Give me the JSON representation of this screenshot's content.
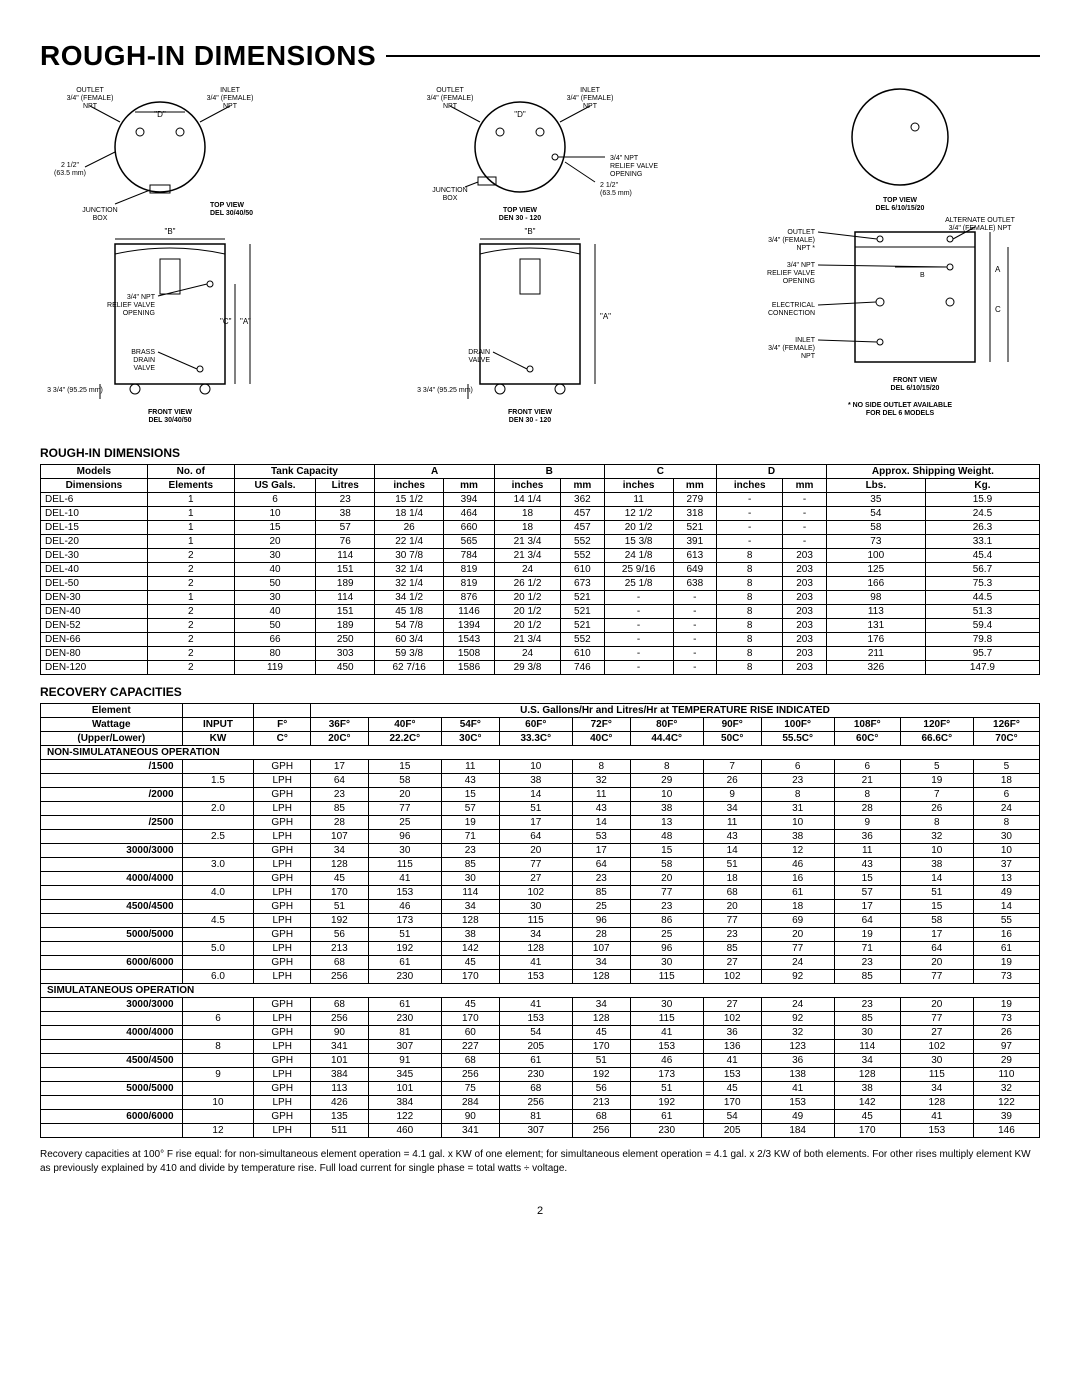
{
  "page": {
    "title": "ROUGH-IN DIMENSIONS",
    "dimensions_heading": "ROUGH-IN DIMENSIONS",
    "recovery_heading": "RECOVERY CAPACITIES",
    "footnote": "Recovery capacities at 100° F rise equal: for non-simultaneous element operation = 4.1 gal. x KW of one element; for simultaneous element operation = 4.1 gal. x 2/3 KW of both elements. For other rises multiply element KW as previously explained by 410 and divide by temperature rise. Full load current for single phase = total watts ÷ voltage.",
    "number": "2"
  },
  "diagrams": {
    "d1_top": {
      "outlet": "OUTLET\n3/4\" (FEMALE)\nNPT",
      "inlet": "INLET\n3/4\" (FEMALE)\nNPT",
      "d": "\"D\"",
      "side": "2 1/2\"\n(63.5 mm)",
      "jbox": "JUNCTION\nBOX",
      "caption": "TOP VIEW\nDEL 30/40/50"
    },
    "d1_front": {
      "b": "\"B\"",
      "relief": "3/4\" NPT\nRELIEF VALVE\nOPENING",
      "c": "\"C\"",
      "a": "\"A\"",
      "drain": "BRASS\nDRAIN\nVALVE",
      "base": "3 3/4\" (95.25 mm)",
      "caption": "FRONT VIEW\nDEL 30/40/50"
    },
    "d2_top": {
      "outlet": "OUTLET\n3/4\" (FEMALE)\nNPT",
      "inlet": "INLET\n3/4\" (FEMALE)\nNPT",
      "d": "\"D\"",
      "relief": "3/4\" NPT\nRELIEF VALVE\nOPENING",
      "jbox": "JUNCTION\nBOX",
      "side": "2 1/2\"\n(63.5 mm)",
      "caption": "TOP VIEW\nDEN 30 - 120"
    },
    "d2_front": {
      "b": "\"B\"",
      "drain": "DRAIN\nVALVE",
      "a": "\"A\"",
      "base": "3 3/4\" (95.25 mm)",
      "caption": "FRONT VIEW\nDEN 30 - 120"
    },
    "d3_top": {
      "caption": "TOP VIEW\nDEL 6/10/15/20"
    },
    "d3_front": {
      "alt": "ALTERNATE OUTLET\n3/4\" (FEMALE) NPT",
      "outlet": "OUTLET\n3/4\" (FEMALE)\nNPT *",
      "relief": "3/4\" NPT\nRELIEF VALVE\nOPENING",
      "elec": "ELECTRICAL\nCONNECTION",
      "inlet": "INLET\n3/4\" (FEMALE)\nNPT",
      "a": "A",
      "b": "B",
      "c": "C",
      "caption": "FRONT VIEW\nDEL 6/10/15/20",
      "note": "* NO SIDE OUTLET AVAILABLE\nFOR DEL 6 MODELS"
    }
  },
  "dim_table": {
    "headers": {
      "models": "Models",
      "noof": "No. of",
      "tank": "Tank Capacity",
      "a": "A",
      "b": "B",
      "c": "C",
      "d": "D",
      "ship": "Approx. Shipping Weight.",
      "dim": "Dimensions",
      "elem": "Elements",
      "usgal": "US Gals.",
      "lit": "Litres",
      "in": "inches",
      "mm": "mm",
      "lbs": "Lbs.",
      "kg": "Kg."
    },
    "rows": [
      [
        "DEL-6",
        "1",
        "6",
        "23",
        "15 1/2",
        "394",
        "14 1/4",
        "362",
        "11",
        "279",
        "-",
        "-",
        "35",
        "15.9"
      ],
      [
        "DEL-10",
        "1",
        "10",
        "38",
        "18 1/4",
        "464",
        "18",
        "457",
        "12 1/2",
        "318",
        "-",
        "-",
        "54",
        "24.5"
      ],
      [
        "DEL-15",
        "1",
        "15",
        "57",
        "26",
        "660",
        "18",
        "457",
        "20 1/2",
        "521",
        "-",
        "-",
        "58",
        "26.3"
      ],
      [
        "DEL-20",
        "1",
        "20",
        "76",
        "22 1/4",
        "565",
        "21 3/4",
        "552",
        "15 3/8",
        "391",
        "-",
        "-",
        "73",
        "33.1"
      ],
      [
        "DEL-30",
        "2",
        "30",
        "114",
        "30 7/8",
        "784",
        "21 3/4",
        "552",
        "24 1/8",
        "613",
        "8",
        "203",
        "100",
        "45.4"
      ],
      [
        "DEL-40",
        "2",
        "40",
        "151",
        "32 1/4",
        "819",
        "24",
        "610",
        "25 9/16",
        "649",
        "8",
        "203",
        "125",
        "56.7"
      ],
      [
        "DEL-50",
        "2",
        "50",
        "189",
        "32 1/4",
        "819",
        "26 1/2",
        "673",
        "25 1/8",
        "638",
        "8",
        "203",
        "166",
        "75.3"
      ],
      [
        "DEN-30",
        "1",
        "30",
        "114",
        "34 1/2",
        "876",
        "20 1/2",
        "521",
        "-",
        "-",
        "8",
        "203",
        "98",
        "44.5"
      ],
      [
        "DEN-40",
        "2",
        "40",
        "151",
        "45 1/8",
        "1146",
        "20 1/2",
        "521",
        "-",
        "-",
        "8",
        "203",
        "113",
        "51.3"
      ],
      [
        "DEN-52",
        "2",
        "50",
        "189",
        "54 7/8",
        "1394",
        "20 1/2",
        "521",
        "-",
        "-",
        "8",
        "203",
        "131",
        "59.4"
      ],
      [
        "DEN-66",
        "2",
        "66",
        "250",
        "60 3/4",
        "1543",
        "21 3/4",
        "552",
        "-",
        "-",
        "8",
        "203",
        "176",
        "79.8"
      ],
      [
        "DEN-80",
        "2",
        "80",
        "303",
        "59 3/8",
        "1508",
        "24",
        "610",
        "-",
        "-",
        "8",
        "203",
        "211",
        "95.7"
      ],
      [
        "DEN-120",
        "2",
        "119",
        "450",
        "62 7/16",
        "1586",
        "29 3/8",
        "746",
        "-",
        "-",
        "8",
        "203",
        "326",
        "147.9"
      ]
    ]
  },
  "rec_table": {
    "headers": {
      "elem": "Element",
      "span": "U.S. Gallons/Hr and Litres/Hr at TEMPERATURE RISE INDICATED",
      "wattage": "Wattage",
      "input": "INPUT",
      "upper": "(Upper/Lower)",
      "kw": "KW",
      "f": "F°",
      "c": "C°",
      "temps_f": [
        "36F°",
        "40F°",
        "54F°",
        "60F°",
        "72F°",
        "80F°",
        "90F°",
        "100F°",
        "108F°",
        "120F°",
        "126F°"
      ],
      "temps_c": [
        "20C°",
        "22.2C°",
        "30C°",
        "33.3C°",
        "40C°",
        "44.4C°",
        "50C°",
        "55.5C°",
        "60C°",
        "66.6C°",
        "70C°"
      ]
    },
    "section_nonsim": "NON-SIMULATANEOUS OPERATION",
    "section_sim": "SIMULATANEOUS OPERATION",
    "nonsim_rows": [
      [
        "/1500",
        "",
        "GPH",
        "17",
        "15",
        "11",
        "10",
        "8",
        "8",
        "7",
        "6",
        "6",
        "5",
        "5"
      ],
      [
        "",
        "1.5",
        "LPH",
        "64",
        "58",
        "43",
        "38",
        "32",
        "29",
        "26",
        "23",
        "21",
        "19",
        "18"
      ],
      [
        "/2000",
        "",
        "GPH",
        "23",
        "20",
        "15",
        "14",
        "11",
        "10",
        "9",
        "8",
        "8",
        "7",
        "6"
      ],
      [
        "",
        "2.0",
        "LPH",
        "85",
        "77",
        "57",
        "51",
        "43",
        "38",
        "34",
        "31",
        "28",
        "26",
        "24"
      ],
      [
        "/2500",
        "",
        "GPH",
        "28",
        "25",
        "19",
        "17",
        "14",
        "13",
        "11",
        "10",
        "9",
        "8",
        "8"
      ],
      [
        "",
        "2.5",
        "LPH",
        "107",
        "96",
        "71",
        "64",
        "53",
        "48",
        "43",
        "38",
        "36",
        "32",
        "30"
      ],
      [
        "3000/3000",
        "",
        "GPH",
        "34",
        "30",
        "23",
        "20",
        "17",
        "15",
        "14",
        "12",
        "11",
        "10",
        "10"
      ],
      [
        "",
        "3.0",
        "LPH",
        "128",
        "115",
        "85",
        "77",
        "64",
        "58",
        "51",
        "46",
        "43",
        "38",
        "37"
      ],
      [
        "4000/4000",
        "",
        "GPH",
        "45",
        "41",
        "30",
        "27",
        "23",
        "20",
        "18",
        "16",
        "15",
        "14",
        "13"
      ],
      [
        "",
        "4.0",
        "LPH",
        "170",
        "153",
        "114",
        "102",
        "85",
        "77",
        "68",
        "61",
        "57",
        "51",
        "49"
      ],
      [
        "4500/4500",
        "",
        "GPH",
        "51",
        "46",
        "34",
        "30",
        "25",
        "23",
        "20",
        "18",
        "17",
        "15",
        "14"
      ],
      [
        "",
        "4.5",
        "LPH",
        "192",
        "173",
        "128",
        "115",
        "96",
        "86",
        "77",
        "69",
        "64",
        "58",
        "55"
      ],
      [
        "5000/5000",
        "",
        "GPH",
        "56",
        "51",
        "38",
        "34",
        "28",
        "25",
        "23",
        "20",
        "19",
        "17",
        "16"
      ],
      [
        "",
        "5.0",
        "LPH",
        "213",
        "192",
        "142",
        "128",
        "107",
        "96",
        "85",
        "77",
        "71",
        "64",
        "61"
      ],
      [
        "6000/6000",
        "",
        "GPH",
        "68",
        "61",
        "45",
        "41",
        "34",
        "30",
        "27",
        "24",
        "23",
        "20",
        "19"
      ],
      [
        "",
        "6.0",
        "LPH",
        "256",
        "230",
        "170",
        "153",
        "128",
        "115",
        "102",
        "92",
        "85",
        "77",
        "73"
      ]
    ],
    "sim_rows": [
      [
        "3000/3000",
        "",
        "GPH",
        "68",
        "61",
        "45",
        "41",
        "34",
        "30",
        "27",
        "24",
        "23",
        "20",
        "19"
      ],
      [
        "",
        "6",
        "LPH",
        "256",
        "230",
        "170",
        "153",
        "128",
        "115",
        "102",
        "92",
        "85",
        "77",
        "73"
      ],
      [
        "4000/4000",
        "",
        "GPH",
        "90",
        "81",
        "60",
        "54",
        "45",
        "41",
        "36",
        "32",
        "30",
        "27",
        "26"
      ],
      [
        "",
        "8",
        "LPH",
        "341",
        "307",
        "227",
        "205",
        "170",
        "153",
        "136",
        "123",
        "114",
        "102",
        "97"
      ],
      [
        "4500/4500",
        "",
        "GPH",
        "101",
        "91",
        "68",
        "61",
        "51",
        "46",
        "41",
        "36",
        "34",
        "30",
        "29"
      ],
      [
        "",
        "9",
        "LPH",
        "384",
        "345",
        "256",
        "230",
        "192",
        "173",
        "153",
        "138",
        "128",
        "115",
        "110"
      ],
      [
        "5000/5000",
        "",
        "GPH",
        "113",
        "101",
        "75",
        "68",
        "56",
        "51",
        "45",
        "41",
        "38",
        "34",
        "32"
      ],
      [
        "",
        "10",
        "LPH",
        "426",
        "384",
        "284",
        "256",
        "213",
        "192",
        "170",
        "153",
        "142",
        "128",
        "122"
      ],
      [
        "6000/6000",
        "",
        "GPH",
        "135",
        "122",
        "90",
        "81",
        "68",
        "61",
        "54",
        "49",
        "45",
        "41",
        "39"
      ],
      [
        "",
        "12",
        "LPH",
        "511",
        "460",
        "341",
        "307",
        "256",
        "230",
        "205",
        "184",
        "170",
        "153",
        "146"
      ]
    ]
  }
}
